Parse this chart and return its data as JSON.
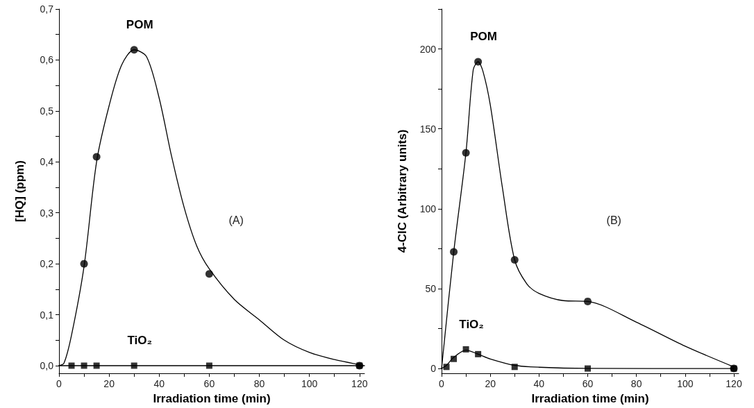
{
  "chart_data": [
    {
      "type": "line",
      "xlabel": "Irradiation time (min)",
      "ylabel": "[HQ] (ppm)",
      "xlim": [
        0,
        122
      ],
      "ylim": [
        -0.015,
        0.7
      ],
      "xticks": [
        0,
        {
          "value": 10,
          "label": null
        },
        20,
        {
          "value": 30,
          "label": null
        },
        40,
        {
          "value": 50,
          "label": null
        },
        60,
        {
          "value": 70,
          "label": null
        },
        80,
        {
          "value": 90,
          "label": null
        },
        100,
        {
          "value": 110,
          "label": null
        },
        120
      ],
      "yticks": [
        {
          "value": 0,
          "label": "0,0"
        },
        {
          "value": 0.05,
          "label": null
        },
        {
          "value": 0.1,
          "label": "0,1"
        },
        {
          "value": 0.15,
          "label": null
        },
        {
          "value": 0.2,
          "label": "0,2"
        },
        {
          "value": 0.25,
          "label": null
        },
        {
          "value": 0.3,
          "label": "0,3"
        },
        {
          "value": 0.35,
          "label": null
        },
        {
          "value": 0.4,
          "label": "0,4"
        },
        {
          "value": 0.45,
          "label": null
        },
        {
          "value": 0.5,
          "label": "0,5"
        },
        {
          "value": 0.55,
          "label": null
        },
        {
          "value": 0.6,
          "label": "0,6"
        },
        {
          "value": 0.65,
          "label": null
        },
        {
          "value": 0.7,
          "label": "0,7"
        }
      ],
      "grid": false,
      "series": [
        {
          "type": "line",
          "color": "#000000",
          "marker": "none",
          "x": [
            0,
            2,
            5,
            10,
            15,
            20,
            25,
            30,
            35,
            40,
            45,
            50,
            55,
            60,
            70,
            80,
            90,
            100,
            110,
            120
          ],
          "values": [
            0,
            0.005,
            0.06,
            0.195,
            0.4,
            0.51,
            0.59,
            0.62,
            0.606,
            0.525,
            0.41,
            0.31,
            0.235,
            0.19,
            0.13,
            0.09,
            0.05,
            0.026,
            0.012,
            0.002
          ]
        },
        {
          "type": "scatter",
          "name": "POM",
          "color": "#000000",
          "marker": "circle",
          "x": [
            10,
            15,
            30,
            60,
            120
          ],
          "values": [
            0.2,
            0.41,
            0.62,
            0.18,
            0
          ]
        },
        {
          "type": "line",
          "color": "#000000",
          "marker": "none",
          "x": [
            0,
            122
          ],
          "values": [
            0,
            0
          ]
        },
        {
          "type": "scatter",
          "name": "TiO₂",
          "color": "#000000",
          "marker": "square",
          "x": [
            5,
            10,
            15,
            30,
            60,
            120
          ],
          "values": [
            0,
            0,
            0,
            0,
            0,
            0
          ]
        }
      ],
      "annotations": [
        "(A)"
      ]
    },
    {
      "type": "line",
      "xlabel": "Irradiation time (min)",
      "ylabel": "4-ClC (Arbitrary units)",
      "xlim": [
        0,
        122
      ],
      "ylim": [
        -3,
        225
      ],
      "xticks": [
        0,
        {
          "value": 10,
          "label": null
        },
        20,
        {
          "value": 30,
          "label": null
        },
        40,
        {
          "value": 50,
          "label": null
        },
        60,
        {
          "value": 70,
          "label": null
        },
        80,
        {
          "value": 90,
          "label": null
        },
        100,
        {
          "value": 110,
          "label": null
        },
        120
      ],
      "yticks": [
        0,
        {
          "value": 25,
          "label": null
        },
        50,
        {
          "value": 75,
          "label": null
        },
        100,
        {
          "value": 125,
          "label": null
        },
        150,
        {
          "value": 175,
          "label": null
        },
        200,
        {
          "value": 225,
          "label": null
        }
      ],
      "grid": false,
      "series": [
        {
          "type": "line",
          "color": "#000000",
          "marker": "none",
          "x": [
            0,
            5,
            10,
            13,
            15,
            17,
            20,
            25,
            30,
            35,
            40,
            50,
            60,
            80,
            100,
            120
          ],
          "values": [
            0,
            73,
            135,
            187,
            192,
            186,
            165,
            113,
            68,
            53,
            47,
            42.5,
            42,
            29,
            14,
            1
          ]
        },
        {
          "type": "scatter",
          "name": "POM",
          "color": "#000000",
          "marker": "circle",
          "x": [
            5,
            10,
            15,
            30,
            60,
            120
          ],
          "values": [
            73,
            135,
            192,
            68,
            42,
            0
          ]
        },
        {
          "type": "line",
          "color": "#000000",
          "marker": "none",
          "x": [
            0,
            2,
            5,
            10,
            15,
            20,
            30,
            40,
            60,
            120
          ],
          "values": [
            0,
            2,
            7,
            11.5,
            9,
            6,
            2,
            0.8,
            0.1,
            0
          ]
        },
        {
          "type": "scatter",
          "name": "TiO₂",
          "color": "#000000",
          "marker": "square",
          "x": [
            2,
            5,
            10,
            15,
            30,
            60,
            120
          ],
          "values": [
            1,
            6,
            12,
            9,
            1,
            0,
            0
          ]
        }
      ],
      "annotations": [
        "(B)"
      ]
    }
  ]
}
